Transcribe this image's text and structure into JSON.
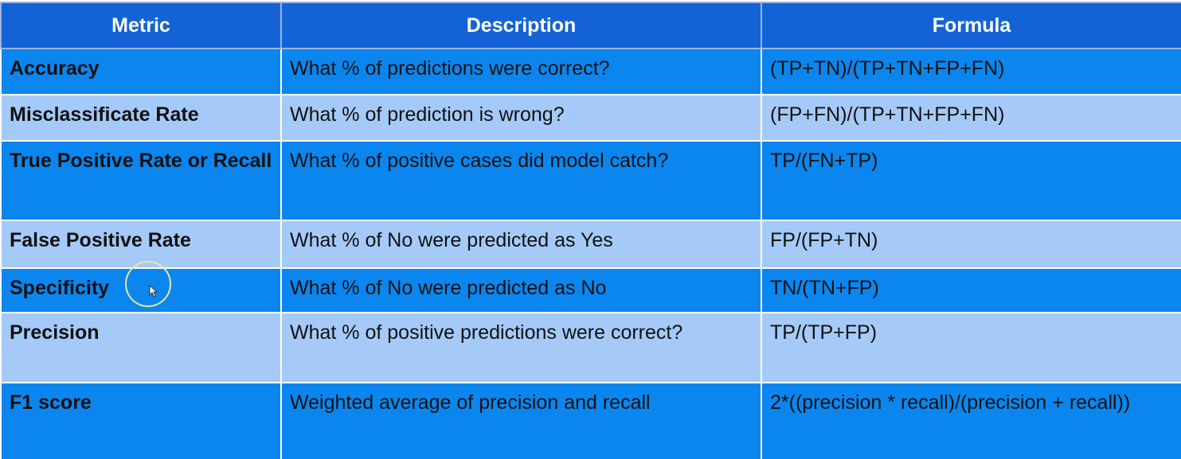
{
  "table": {
    "headers": [
      "Metric",
      "Description",
      "Formula"
    ],
    "rows": [
      {
        "metric": "Accuracy",
        "description": "What % of predictions were correct?",
        "formula": "(TP+TN)/(TP+TN+FP+FN)"
      },
      {
        "metric": "Misclassificate Rate",
        "description": "What % of prediction is wrong?",
        "formula": "(FP+FN)/(TP+TN+FP+FN)"
      },
      {
        "metric": "True Positive Rate or Recall",
        "description": "What % of positive cases did model catch?",
        "formula": "TP/(FN+TP)"
      },
      {
        "metric": "False Positive Rate",
        "description": "What % of No were predicted as Yes",
        "formula": "FP/(FP+TN)"
      },
      {
        "metric": "Specificity",
        "description": "What % of No were predicted as No",
        "formula": "TN/(TN+FP)"
      },
      {
        "metric": "Precision",
        "description": "What % of positive predictions were correct?",
        "formula": "TP/(TP+FP)"
      },
      {
        "metric": "F1 score",
        "description": "Weighted average of precision and recall",
        "formula": "2*((precision * recall)/(precision + recall))"
      }
    ]
  },
  "colors": {
    "header_bg": "#1463d6",
    "row_dark": "#0b86ee",
    "row_light": "#a5caf8"
  },
  "cursor": {
    "icon": "mouse-pointer-icon"
  }
}
